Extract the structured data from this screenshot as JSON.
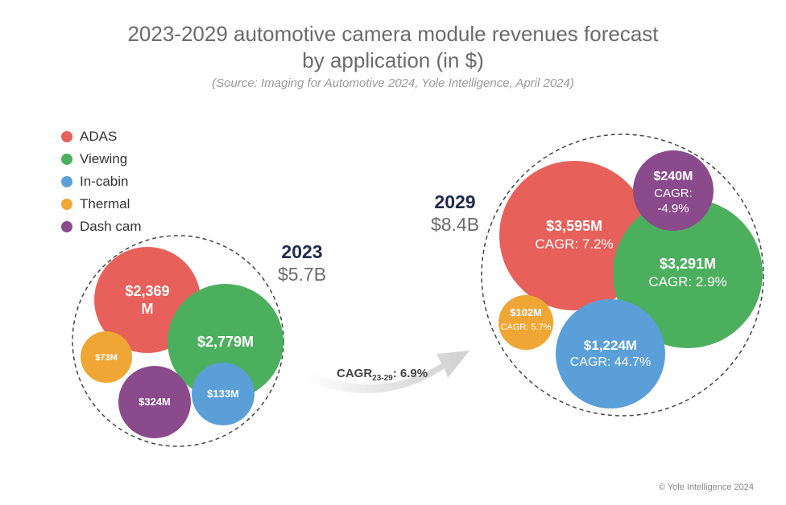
{
  "title_line1": "2023-2029 automotive camera module revenues forecast",
  "title_line2": "by application (in $)",
  "source": "(Source: Imaging for Automotive 2024, Yole Intelligence, April 2024)",
  "copyright": "© Yole Intelligence 2024",
  "colors": {
    "adas": "#e8605a",
    "viewing": "#4caf5e",
    "incabin": "#5b9fd9",
    "thermal": "#f0a634",
    "dashcam": "#8a4a8c"
  },
  "legend": [
    {
      "label": "ADAS",
      "color": "#e8605a"
    },
    {
      "label": "Viewing",
      "color": "#4caf5e"
    },
    {
      "label": "In-cabin",
      "color": "#5b9fd9"
    },
    {
      "label": "Thermal",
      "color": "#f0a634"
    },
    {
      "label": "Dash cam",
      "color": "#8a4a8c"
    }
  ],
  "arrow": {
    "label_main": "CAGR",
    "label_sub": "23-29",
    "label_value": ": 6.9%"
  },
  "chart_data": {
    "type": "bubble",
    "title": "2023-2029 automotive camera module revenues forecast by application (in $)",
    "categories": [
      "ADAS",
      "Viewing",
      "In-cabin",
      "Thermal",
      "Dash cam"
    ],
    "years": [
      {
        "year": "2023",
        "total": "$5.7B",
        "values_musd": [
          2369,
          2779,
          133,
          73,
          324
        ],
        "labels": [
          "$2,369 M",
          "$2,779M",
          "$133M",
          "$73M",
          "$324M"
        ],
        "cagr_labels": [
          "",
          "",
          "",
          "",
          ""
        ]
      },
      {
        "year": "2029",
        "total": "$8.4B",
        "values_musd": [
          3595,
          3291,
          1224,
          102,
          240
        ],
        "labels": [
          "$3,595M",
          "$3,291M",
          "$1,224M",
          "$102M",
          "$240M"
        ],
        "cagr_labels": [
          "CAGR: 7.2%",
          "CAGR: 2.9%",
          "CAGR: 44.7%",
          "CAGR: 5.7%",
          "CAGR: -4.9%"
        ]
      }
    ],
    "overall_cagr": "CAGR23-29: 6.9%"
  }
}
